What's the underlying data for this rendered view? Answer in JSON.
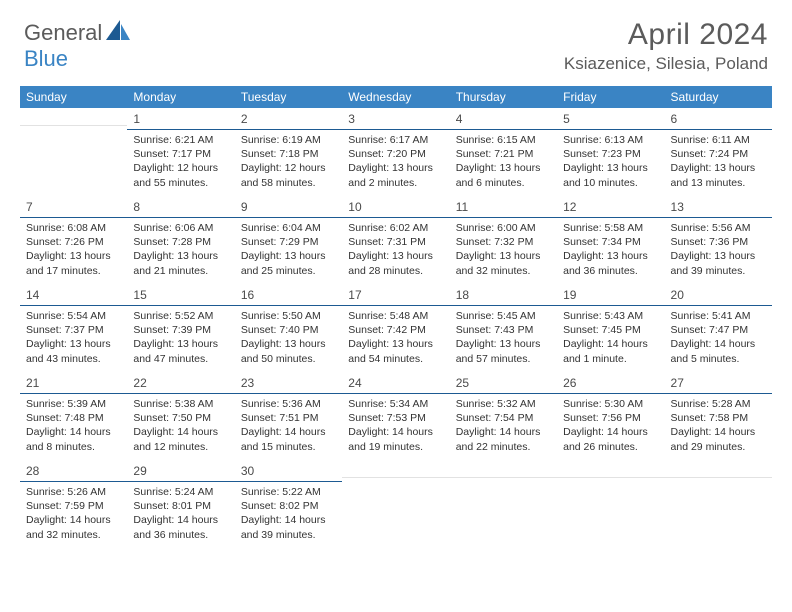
{
  "logo": {
    "textA": "General",
    "textB": "Blue"
  },
  "title": "April 2024",
  "location": "Ksiazenice, Silesia, Poland",
  "colors": {
    "header_bg": "#3a84c4",
    "header_text": "#ffffff",
    "day_rule": "#1d5a92",
    "body_text": "#333333",
    "title_text": "#5b5b5b"
  },
  "weekdays": [
    "Sunday",
    "Monday",
    "Tuesday",
    "Wednesday",
    "Thursday",
    "Friday",
    "Saturday"
  ],
  "grid": [
    [
      null,
      {
        "n": "1",
        "sr": "6:21 AM",
        "ss": "7:17 PM",
        "dl": "12 hours and 55 minutes."
      },
      {
        "n": "2",
        "sr": "6:19 AM",
        "ss": "7:18 PM",
        "dl": "12 hours and 58 minutes."
      },
      {
        "n": "3",
        "sr": "6:17 AM",
        "ss": "7:20 PM",
        "dl": "13 hours and 2 minutes."
      },
      {
        "n": "4",
        "sr": "6:15 AM",
        "ss": "7:21 PM",
        "dl": "13 hours and 6 minutes."
      },
      {
        "n": "5",
        "sr": "6:13 AM",
        "ss": "7:23 PM",
        "dl": "13 hours and 10 minutes."
      },
      {
        "n": "6",
        "sr": "6:11 AM",
        "ss": "7:24 PM",
        "dl": "13 hours and 13 minutes."
      }
    ],
    [
      {
        "n": "7",
        "sr": "6:08 AM",
        "ss": "7:26 PM",
        "dl": "13 hours and 17 minutes."
      },
      {
        "n": "8",
        "sr": "6:06 AM",
        "ss": "7:28 PM",
        "dl": "13 hours and 21 minutes."
      },
      {
        "n": "9",
        "sr": "6:04 AM",
        "ss": "7:29 PM",
        "dl": "13 hours and 25 minutes."
      },
      {
        "n": "10",
        "sr": "6:02 AM",
        "ss": "7:31 PM",
        "dl": "13 hours and 28 minutes."
      },
      {
        "n": "11",
        "sr": "6:00 AM",
        "ss": "7:32 PM",
        "dl": "13 hours and 32 minutes."
      },
      {
        "n": "12",
        "sr": "5:58 AM",
        "ss": "7:34 PM",
        "dl": "13 hours and 36 minutes."
      },
      {
        "n": "13",
        "sr": "5:56 AM",
        "ss": "7:36 PM",
        "dl": "13 hours and 39 minutes."
      }
    ],
    [
      {
        "n": "14",
        "sr": "5:54 AM",
        "ss": "7:37 PM",
        "dl": "13 hours and 43 minutes."
      },
      {
        "n": "15",
        "sr": "5:52 AM",
        "ss": "7:39 PM",
        "dl": "13 hours and 47 minutes."
      },
      {
        "n": "16",
        "sr": "5:50 AM",
        "ss": "7:40 PM",
        "dl": "13 hours and 50 minutes."
      },
      {
        "n": "17",
        "sr": "5:48 AM",
        "ss": "7:42 PM",
        "dl": "13 hours and 54 minutes."
      },
      {
        "n": "18",
        "sr": "5:45 AM",
        "ss": "7:43 PM",
        "dl": "13 hours and 57 minutes."
      },
      {
        "n": "19",
        "sr": "5:43 AM",
        "ss": "7:45 PM",
        "dl": "14 hours and 1 minute."
      },
      {
        "n": "20",
        "sr": "5:41 AM",
        "ss": "7:47 PM",
        "dl": "14 hours and 5 minutes."
      }
    ],
    [
      {
        "n": "21",
        "sr": "5:39 AM",
        "ss": "7:48 PM",
        "dl": "14 hours and 8 minutes."
      },
      {
        "n": "22",
        "sr": "5:38 AM",
        "ss": "7:50 PM",
        "dl": "14 hours and 12 minutes."
      },
      {
        "n": "23",
        "sr": "5:36 AM",
        "ss": "7:51 PM",
        "dl": "14 hours and 15 minutes."
      },
      {
        "n": "24",
        "sr": "5:34 AM",
        "ss": "7:53 PM",
        "dl": "14 hours and 19 minutes."
      },
      {
        "n": "25",
        "sr": "5:32 AM",
        "ss": "7:54 PM",
        "dl": "14 hours and 22 minutes."
      },
      {
        "n": "26",
        "sr": "5:30 AM",
        "ss": "7:56 PM",
        "dl": "14 hours and 26 minutes."
      },
      {
        "n": "27",
        "sr": "5:28 AM",
        "ss": "7:58 PM",
        "dl": "14 hours and 29 minutes."
      }
    ],
    [
      {
        "n": "28",
        "sr": "5:26 AM",
        "ss": "7:59 PM",
        "dl": "14 hours and 32 minutes."
      },
      {
        "n": "29",
        "sr": "5:24 AM",
        "ss": "8:01 PM",
        "dl": "14 hours and 36 minutes."
      },
      {
        "n": "30",
        "sr": "5:22 AM",
        "ss": "8:02 PM",
        "dl": "14 hours and 39 minutes."
      },
      null,
      null,
      null,
      null
    ]
  ],
  "labels": {
    "sunrise": "Sunrise:",
    "sunset": "Sunset:",
    "daylight": "Daylight:"
  }
}
